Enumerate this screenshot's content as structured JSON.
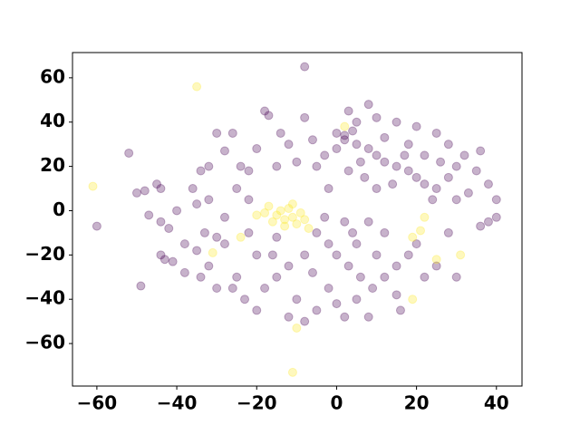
{
  "chart_data": {
    "type": "scatter",
    "xlim": [
      -66.1,
      46.4
    ],
    "ylim": [
      -79.2,
      71.4
    ],
    "xticks": [
      {
        "value": -60,
        "label": "−60"
      },
      {
        "value": -40,
        "label": "−40"
      },
      {
        "value": -20,
        "label": "−20"
      },
      0,
      20,
      40
    ],
    "yticks": [
      {
        "value": -60,
        "label": "−60"
      },
      {
        "value": -40,
        "label": "−40"
      },
      {
        "value": -20,
        "label": "−20"
      },
      0,
      20,
      40,
      60
    ],
    "grid": false,
    "series": [
      {
        "color": "#440154",
        "x": [
          0,
          2,
          5,
          8,
          10,
          12,
          15,
          18,
          20,
          22,
          25,
          28,
          30,
          32,
          28,
          25,
          20,
          15,
          10,
          5,
          0,
          -3,
          -5,
          3,
          7,
          10,
          14,
          17,
          22,
          26,
          35,
          38,
          40,
          36,
          33,
          12,
          6,
          -2,
          -6,
          -8,
          8,
          3,
          18,
          24,
          30,
          2,
          4,
          38,
          40,
          36,
          -5,
          -2,
          0,
          3,
          6,
          9,
          12,
          15,
          18,
          20,
          -8,
          -12,
          -15,
          -18,
          -10,
          -5,
          0,
          5,
          -20,
          -22,
          -25,
          -20,
          -12,
          -8,
          2,
          8,
          15,
          22,
          25,
          12,
          8,
          2,
          -3,
          5,
          -6,
          -15,
          10,
          -2,
          28,
          30,
          -28,
          -23,
          16,
          -16,
          4,
          -50,
          -48,
          -45,
          -44,
          -47,
          -44,
          -42,
          -43,
          -41,
          -44,
          -38,
          -32,
          -34,
          -30,
          -33,
          -30,
          -35,
          -32,
          -28,
          -36,
          -34,
          -32,
          -28,
          -24,
          -22,
          -26,
          -18,
          -17,
          -20,
          -14,
          -12,
          -10,
          -15,
          -25,
          -22,
          -30,
          -40,
          -38,
          -8,
          -52,
          -60,
          -49,
          -35,
          -26
        ],
        "values": [
          35,
          32,
          30,
          28,
          25,
          22,
          20,
          18,
          15,
          12,
          10,
          15,
          20,
          25,
          30,
          35,
          38,
          40,
          42,
          40,
          28,
          25,
          20,
          18,
          15,
          10,
          12,
          25,
          25,
          22,
          18,
          12,
          5,
          27,
          8,
          33,
          22,
          10,
          32,
          42,
          48,
          45,
          30,
          5,
          5,
          34,
          36,
          -5,
          -3,
          -7,
          -10,
          -15,
          -20,
          -25,
          -30,
          -35,
          -30,
          -25,
          -20,
          -15,
          -20,
          -25,
          -30,
          -35,
          -40,
          -45,
          -42,
          -40,
          -20,
          -10,
          -30,
          -45,
          -48,
          -50,
          -48,
          -48,
          -38,
          -30,
          -25,
          -10,
          -5,
          -5,
          -3,
          -15,
          -28,
          -12,
          -20,
          -35,
          -10,
          -30,
          -15,
          -40,
          -45,
          -20,
          -10,
          8,
          9,
          12,
          10,
          -2,
          -5,
          -8,
          -22,
          -23,
          -20,
          -28,
          -25,
          -30,
          -35,
          -10,
          -12,
          3,
          5,
          -3,
          10,
          18,
          20,
          27,
          20,
          18,
          35,
          45,
          43,
          28,
          35,
          30,
          22,
          20,
          10,
          5,
          35,
          0,
          -15,
          65,
          26,
          -7,
          -34,
          -18,
          -35
        ]
      },
      {
        "color": "#fde725",
        "x": [
          -15,
          -13,
          -11,
          -14,
          -12,
          -16,
          -10,
          -18,
          -9,
          -13,
          -17,
          -20,
          -11,
          -8,
          -35,
          -61,
          -11,
          -10,
          31,
          19,
          25,
          21,
          19,
          -31,
          2,
          -24,
          -7,
          22
        ],
        "values": [
          -2,
          -4,
          -3,
          0,
          1,
          -5,
          -6,
          -1,
          -1,
          -7,
          2,
          -2,
          3,
          -4,
          56,
          11,
          -73,
          -53,
          -20,
          -40,
          -22,
          -9,
          -12,
          -19,
          38,
          -12,
          -8,
          -3
        ]
      }
    ]
  }
}
